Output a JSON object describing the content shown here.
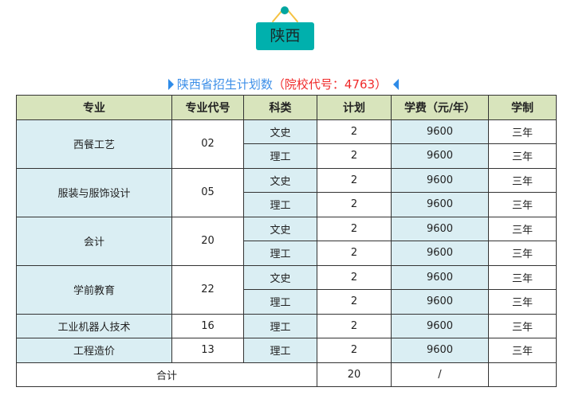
{
  "province": "陕西",
  "caption": {
    "main": "陕西省招生计划数",
    "code": "（院校代号：4763）"
  },
  "headers": [
    "专业",
    "专业代号",
    "科类",
    "计划",
    "学费（元/年）",
    "学制"
  ],
  "majors": [
    {
      "name": "西餐工艺",
      "code": "02",
      "rows": [
        {
          "type": "文史",
          "plan": "2",
          "fee": "9600",
          "years": "三年"
        },
        {
          "type": "理工",
          "plan": "2",
          "fee": "9600",
          "years": "三年"
        }
      ]
    },
    {
      "name": "服装与服饰设计",
      "code": "05",
      "rows": [
        {
          "type": "文史",
          "plan": "2",
          "fee": "9600",
          "years": "三年"
        },
        {
          "type": "理工",
          "plan": "2",
          "fee": "9600",
          "years": "三年"
        }
      ]
    },
    {
      "name": "会计",
      "code": "20",
      "rows": [
        {
          "type": "文史",
          "plan": "2",
          "fee": "9600",
          "years": "三年"
        },
        {
          "type": "理工",
          "plan": "2",
          "fee": "9600",
          "years": "三年"
        }
      ]
    },
    {
      "name": "学前教育",
      "code": "22",
      "rows": [
        {
          "type": "文史",
          "plan": "2",
          "fee": "9600",
          "years": "三年"
        },
        {
          "type": "理工",
          "plan": "2",
          "fee": "9600",
          "years": "三年"
        }
      ]
    },
    {
      "name": "工业机器人技术",
      "code": "16",
      "rows": [
        {
          "type": "理工",
          "plan": "2",
          "fee": "9600",
          "years": "三年"
        }
      ]
    },
    {
      "name": "工程造价",
      "code": "13",
      "rows": [
        {
          "type": "理工",
          "plan": "2",
          "fee": "9600",
          "years": "三年"
        }
      ]
    }
  ],
  "total": {
    "label": "合计",
    "plan": "20",
    "fee": "/",
    "years": ""
  }
}
